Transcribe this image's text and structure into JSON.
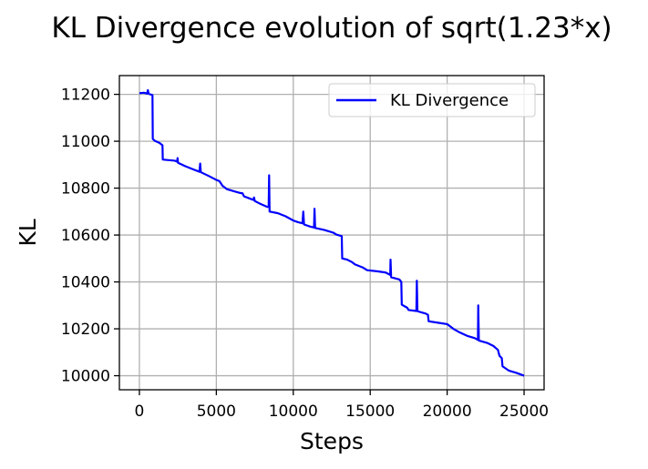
{
  "chart_data": {
    "type": "line",
    "title": "KL Divergence evolution of sqrt(1.23*x)",
    "xlabel": "Steps",
    "ylabel": "KL",
    "xlim": [
      -1300,
      26300
    ],
    "ylim": [
      9940,
      11280
    ],
    "xticks": [
      0,
      5000,
      10000,
      15000,
      20000,
      25000
    ],
    "xtick_labels": [
      "0",
      "5000",
      "10000",
      "15000",
      "20000",
      "25000"
    ],
    "yticks": [
      10000,
      10200,
      10400,
      10600,
      10800,
      11000,
      11200
    ],
    "ytick_labels": [
      "10000",
      "10200",
      "10400",
      "10600",
      "10800",
      "11000",
      "11200"
    ],
    "grid": true,
    "legend_position": "upper right",
    "colors": {
      "series": "#0000ff",
      "grid": "#b0b0b0",
      "axes": "#000000"
    },
    "series": [
      {
        "name": "KL Divergence",
        "color": "#0000ff",
        "points": [
          [
            0,
            11205
          ],
          [
            300,
            11207
          ],
          [
            500,
            11203
          ],
          [
            550,
            11218
          ],
          [
            600,
            11203
          ],
          [
            700,
            11200
          ],
          [
            850,
            11197
          ],
          [
            870,
            11010
          ],
          [
            1000,
            11002
          ],
          [
            1300,
            10993
          ],
          [
            1500,
            10983
          ],
          [
            1520,
            10922
          ],
          [
            1800,
            10920
          ],
          [
            2300,
            10917
          ],
          [
            2450,
            10913
          ],
          [
            2480,
            10928
          ],
          [
            2510,
            10908
          ],
          [
            3000,
            10893
          ],
          [
            3500,
            10880
          ],
          [
            3900,
            10870
          ],
          [
            3950,
            10905
          ],
          [
            3990,
            10868
          ],
          [
            4500,
            10852
          ],
          [
            5000,
            10835
          ],
          [
            5200,
            10830
          ],
          [
            5400,
            10810
          ],
          [
            5700,
            10795
          ],
          [
            6500,
            10780
          ],
          [
            6700,
            10778
          ],
          [
            6800,
            10765
          ],
          [
            7200,
            10755
          ],
          [
            7400,
            10750
          ],
          [
            7450,
            10760
          ],
          [
            7500,
            10745
          ],
          [
            7800,
            10735
          ],
          [
            8300,
            10720
          ],
          [
            8400,
            10720
          ],
          [
            8430,
            10855
          ],
          [
            8460,
            10700
          ],
          [
            9000,
            10693
          ],
          [
            9500,
            10680
          ],
          [
            10000,
            10662
          ],
          [
            10300,
            10655
          ],
          [
            10600,
            10650
          ],
          [
            10650,
            10700
          ],
          [
            10700,
            10645
          ],
          [
            11100,
            10636
          ],
          [
            11350,
            10632
          ],
          [
            11380,
            10712
          ],
          [
            11420,
            10630
          ],
          [
            12000,
            10622
          ],
          [
            12200,
            10618
          ],
          [
            12600,
            10610
          ],
          [
            12800,
            10602
          ],
          [
            13150,
            10595
          ],
          [
            13180,
            10500
          ],
          [
            13500,
            10495
          ],
          [
            13800,
            10485
          ],
          [
            14000,
            10475
          ],
          [
            14500,
            10462
          ],
          [
            14800,
            10450
          ],
          [
            15500,
            10445
          ],
          [
            16000,
            10440
          ],
          [
            16300,
            10430
          ],
          [
            16320,
            10495
          ],
          [
            16360,
            10420
          ],
          [
            16900,
            10410
          ],
          [
            17020,
            10400
          ],
          [
            17050,
            10303
          ],
          [
            17400,
            10290
          ],
          [
            17500,
            10280
          ],
          [
            18000,
            10276
          ],
          [
            18030,
            10405
          ],
          [
            18070,
            10275
          ],
          [
            18600,
            10265
          ],
          [
            18750,
            10260
          ],
          [
            18800,
            10232
          ],
          [
            19500,
            10225
          ],
          [
            20000,
            10220
          ],
          [
            20400,
            10200
          ],
          [
            20800,
            10185
          ],
          [
            21300,
            10170
          ],
          [
            21800,
            10160
          ],
          [
            22000,
            10153
          ],
          [
            22020,
            10300
          ],
          [
            22060,
            10150
          ],
          [
            22600,
            10140
          ],
          [
            23000,
            10127
          ],
          [
            23300,
            10110
          ],
          [
            23400,
            10085
          ],
          [
            23550,
            10075
          ],
          [
            23600,
            10040
          ],
          [
            24000,
            10022
          ],
          [
            24500,
            10012
          ],
          [
            25000,
            10000
          ]
        ]
      }
    ]
  }
}
